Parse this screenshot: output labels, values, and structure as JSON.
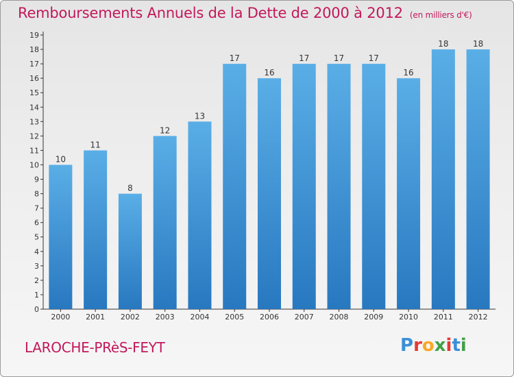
{
  "header": {
    "title": "Remboursements Annuels de la Dette de 2000 à 2012",
    "unit": "(en milliers d'€)"
  },
  "commune": "LAROCHE-PRèS-FEYT",
  "brand": {
    "letters": [
      "P",
      "r",
      "o",
      "x",
      "i",
      "t",
      "i"
    ],
    "colors": [
      "#3a8fd9",
      "#e53935",
      "#f9a825",
      "#43a047",
      "#e53935",
      "#3a8fd9",
      "#43a047"
    ]
  },
  "colors": {
    "bar_light": "#5aaee6",
    "bar_dark": "#2878c0",
    "axis": "#333333",
    "title": "#c2185b"
  },
  "chart_data": {
    "type": "bar",
    "title": "Remboursements Annuels de la Dette de 2000 à 2012",
    "subtitle": "(en milliers d'€)",
    "categories": [
      "2000",
      "2001",
      "2002",
      "2003",
      "2004",
      "2005",
      "2006",
      "2007",
      "2008",
      "2009",
      "2010",
      "2011",
      "2012"
    ],
    "values": [
      10,
      11,
      8,
      12,
      13,
      17,
      16,
      17,
      17,
      17,
      16,
      18,
      18
    ],
    "ylim": [
      0,
      19
    ],
    "yticks": [
      0,
      1,
      2,
      3,
      4,
      5,
      6,
      7,
      8,
      9,
      10,
      11,
      12,
      13,
      14,
      15,
      16,
      17,
      18,
      19
    ],
    "xlabel": "",
    "ylabel": "",
    "grid": false,
    "data_labels": true
  }
}
